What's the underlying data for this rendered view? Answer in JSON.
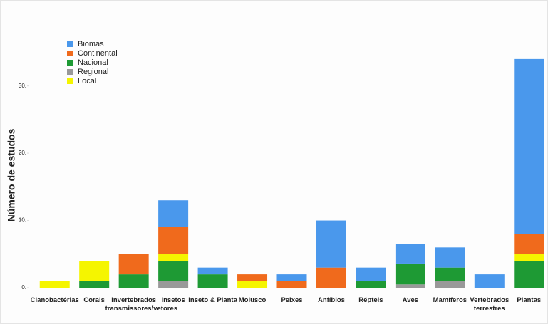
{
  "chart_data": {
    "type": "stacked_bar",
    "y_label": "Número de estudos",
    "categories": [
      "Cianobactérias",
      "Corais",
      "Invertebrados transmissores/vetores",
      "Insetos",
      "Inseto & Planta",
      "Molusco",
      "Peixes",
      "Anfíbios",
      "Répteis",
      "Aves",
      "Mamíferos",
      "Vertebrados terrestres",
      "Plantas"
    ],
    "series": [
      {
        "name": "Regional",
        "color": "#999999",
        "values": [
          0,
          0,
          0,
          1,
          0,
          0,
          0,
          0,
          0,
          0.5,
          1,
          0,
          0
        ]
      },
      {
        "name": "Nacional",
        "color": "#1e9a34",
        "values": [
          0,
          1,
          2,
          3,
          2,
          0,
          0,
          0,
          1,
          3,
          2,
          0,
          4
        ]
      },
      {
        "name": "Local",
        "color": "#f5f500",
        "values": [
          1,
          3,
          0,
          1,
          0,
          1,
          0,
          0,
          0,
          0,
          0,
          0,
          1
        ]
      },
      {
        "name": "Continental",
        "color": "#f06a1c",
        "values": [
          0,
          0,
          3,
          4,
          0,
          1,
          1,
          3,
          0,
          0,
          0,
          0,
          3
        ]
      },
      {
        "name": "Biomas",
        "color": "#4a98ec",
        "values": [
          0,
          0,
          0,
          4,
          1,
          0,
          1,
          7,
          2,
          3,
          3,
          2,
          26
        ]
      }
    ],
    "legend_order": [
      "Biomas",
      "Continental",
      "Nacional",
      "Regional",
      "Local"
    ],
    "ylim": [
      0,
      36
    ],
    "yticks": [
      {
        "value": 0,
        "label": "0."
      },
      {
        "value": 10,
        "label": "10."
      },
      {
        "value": 20,
        "label": "20."
      },
      {
        "value": 30,
        "label": "30."
      }
    ],
    "legend_position": "upper left"
  }
}
